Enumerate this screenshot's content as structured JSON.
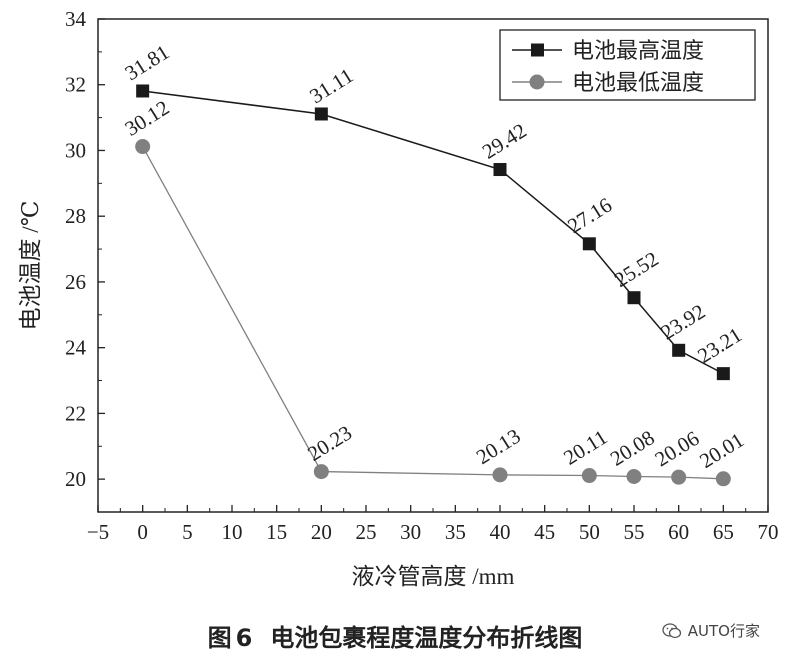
{
  "chart_data": {
    "type": "line",
    "xlabel": "液冷管高度 /mm",
    "ylabel": "电池温度 /℃",
    "xlim": [
      -5,
      70
    ],
    "ylim": [
      19,
      34
    ],
    "xticks": [
      -5,
      0,
      5,
      10,
      15,
      20,
      25,
      30,
      35,
      40,
      45,
      50,
      55,
      60,
      65,
      70
    ],
    "yticks": [
      20,
      22,
      24,
      26,
      28,
      30,
      32,
      34
    ],
    "x": [
      0,
      20,
      40,
      50,
      55,
      60,
      65
    ],
    "series": [
      {
        "name": "电池最高温度",
        "values": [
          31.81,
          31.11,
          29.42,
          27.16,
          25.52,
          23.92,
          23.21
        ],
        "labels": [
          "31.81",
          "31.11",
          "29.42",
          "27.16",
          "25.52",
          "23.92",
          "23.21"
        ],
        "marker": "square",
        "color": "#1a1a1a"
      },
      {
        "name": "电池最低温度",
        "values": [
          30.12,
          20.23,
          20.13,
          20.11,
          20.08,
          20.06,
          20.01
        ],
        "labels": [
          "30.12",
          "20.23",
          "20.13",
          "20.11",
          "20.08",
          "20.06",
          "20.01"
        ],
        "marker": "circle",
        "color": "#808080"
      }
    ],
    "legend": "top-right",
    "grid": false
  },
  "caption": {
    "prefix": "图",
    "number": "6",
    "text": "电池包裹程度温度分布折线图"
  },
  "watermark": {
    "text": "AUTO行家",
    "icon": "wechat-icon"
  }
}
